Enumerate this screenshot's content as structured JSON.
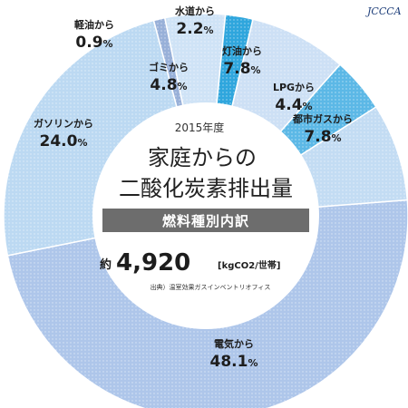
{
  "header": {
    "logo_text": "JCCCA"
  },
  "center": {
    "year": "2015年度",
    "title_line1": "家庭からの",
    "title_line2": "二酸化炭素排出量",
    "subtitle": "燃料種別内訳",
    "total_prefix": "約",
    "total_value": "4,920",
    "total_unit": "[kgCO2/世帯]",
    "source": "出典）温室効果ガスインベントリオフィス"
  },
  "colors": {
    "electricity": "#aec6ea",
    "gasoline": "#bcd9f2",
    "light_oil": "#98b0d8",
    "garbage": "#cfe3f6",
    "water": "#2fa6dd",
    "kerosene": "#cde0f5",
    "lpg": "#5cb8e6",
    "city_gas": "#c3dcf3",
    "center_bg": "#ffffff",
    "subtitle_bg": "#6d6d6d"
  },
  "chart_data": {
    "type": "pie",
    "title": "家庭からの二酸化炭素排出量 燃料種別内訳",
    "slices": [
      {
        "key": "electricity",
        "label": "電気から",
        "value": 48.1,
        "value_text": "48.1",
        "unit": "%"
      },
      {
        "key": "gasoline",
        "label": "ガソリンから",
        "value": 24.0,
        "value_text": "24.0",
        "unit": "%"
      },
      {
        "key": "light_oil",
        "label": "軽油から",
        "value": 0.9,
        "value_text": "0.9",
        "unit": "%"
      },
      {
        "key": "garbage",
        "label": "ゴミから",
        "value": 4.8,
        "value_text": "4.8",
        "unit": "%"
      },
      {
        "key": "water",
        "label": "水道から",
        "value": 2.2,
        "value_text": "2.2",
        "unit": "%"
      },
      {
        "key": "kerosene",
        "label": "灯油から",
        "value": 7.8,
        "value_text": "7.8",
        "unit": "%"
      },
      {
        "key": "lpg",
        "label": "LPGから",
        "value": 4.4,
        "value_text": "4.4",
        "unit": "%"
      },
      {
        "key": "city_gas",
        "label": "都市ガスから",
        "value": 7.8,
        "value_text": "7.8",
        "unit": "%"
      }
    ]
  }
}
